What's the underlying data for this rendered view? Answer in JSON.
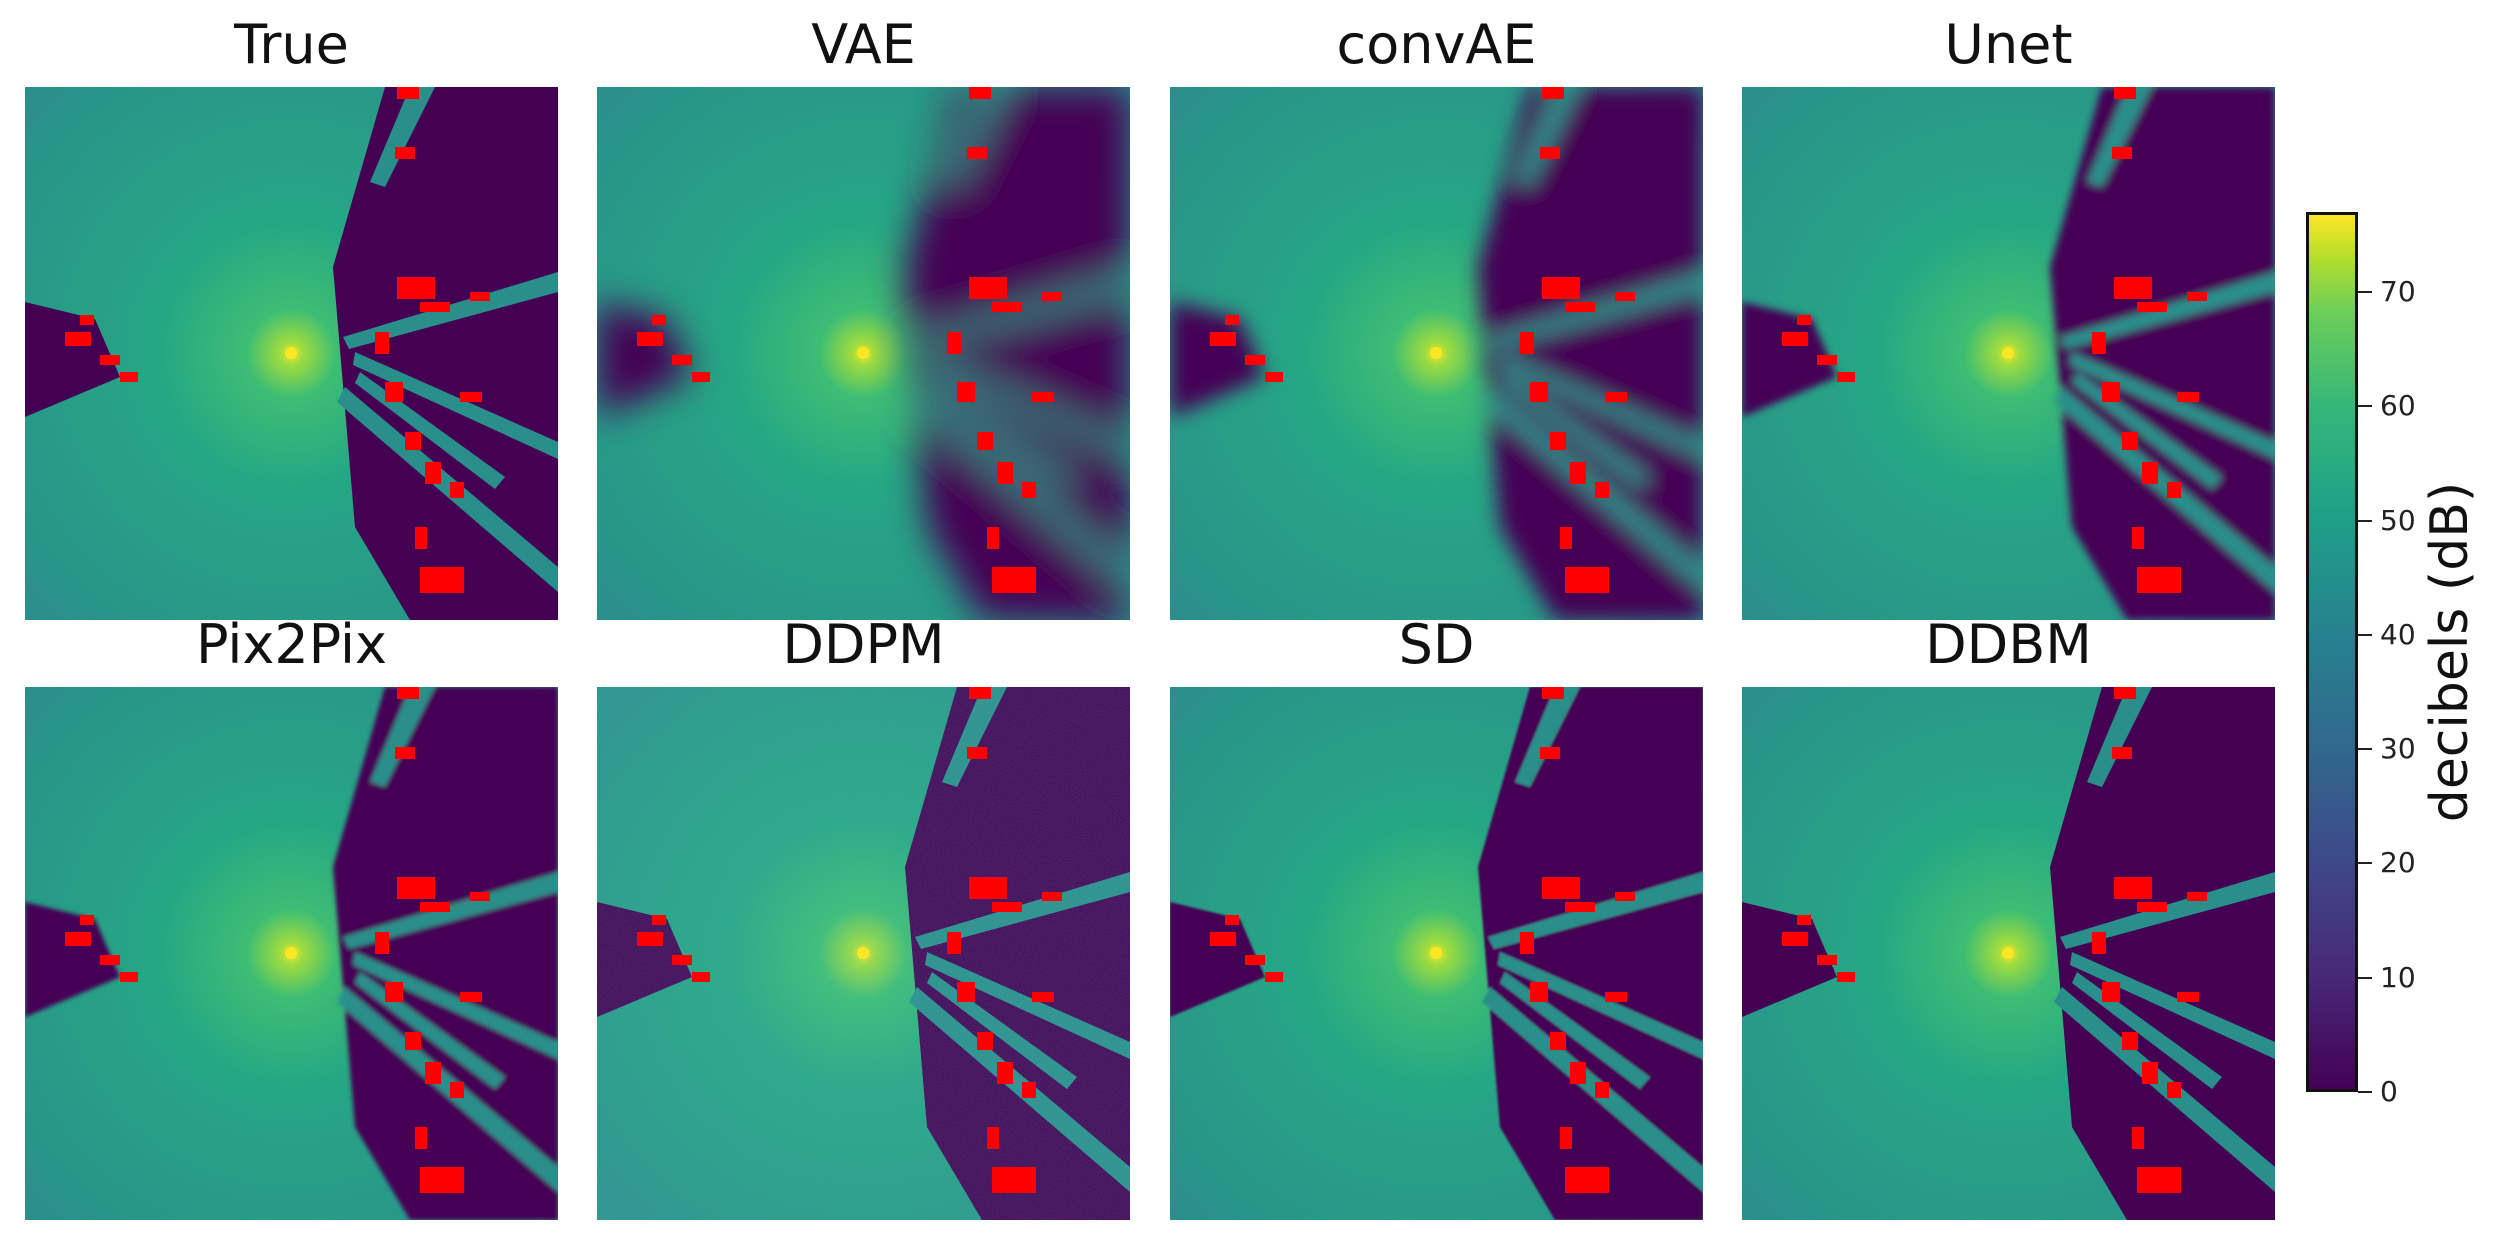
{
  "panels": [
    {
      "title": "True"
    },
    {
      "title": "VAE"
    },
    {
      "title": "convAE"
    },
    {
      "title": "Unet"
    },
    {
      "title": "Pix2Pix"
    },
    {
      "title": "DDPM"
    },
    {
      "title": "SD"
    },
    {
      "title": "DDBM"
    }
  ],
  "colorbar": {
    "label": "decibels (dB)",
    "ticks": [
      "0",
      "10",
      "20",
      "30",
      "40",
      "50",
      "60",
      "70"
    ],
    "min": 0,
    "max": 77,
    "colormap": "viridis"
  },
  "colors": {
    "shadow": "#440154",
    "field": "#2a8f8b",
    "building": "#ff0000",
    "peak": "#fde725"
  }
}
